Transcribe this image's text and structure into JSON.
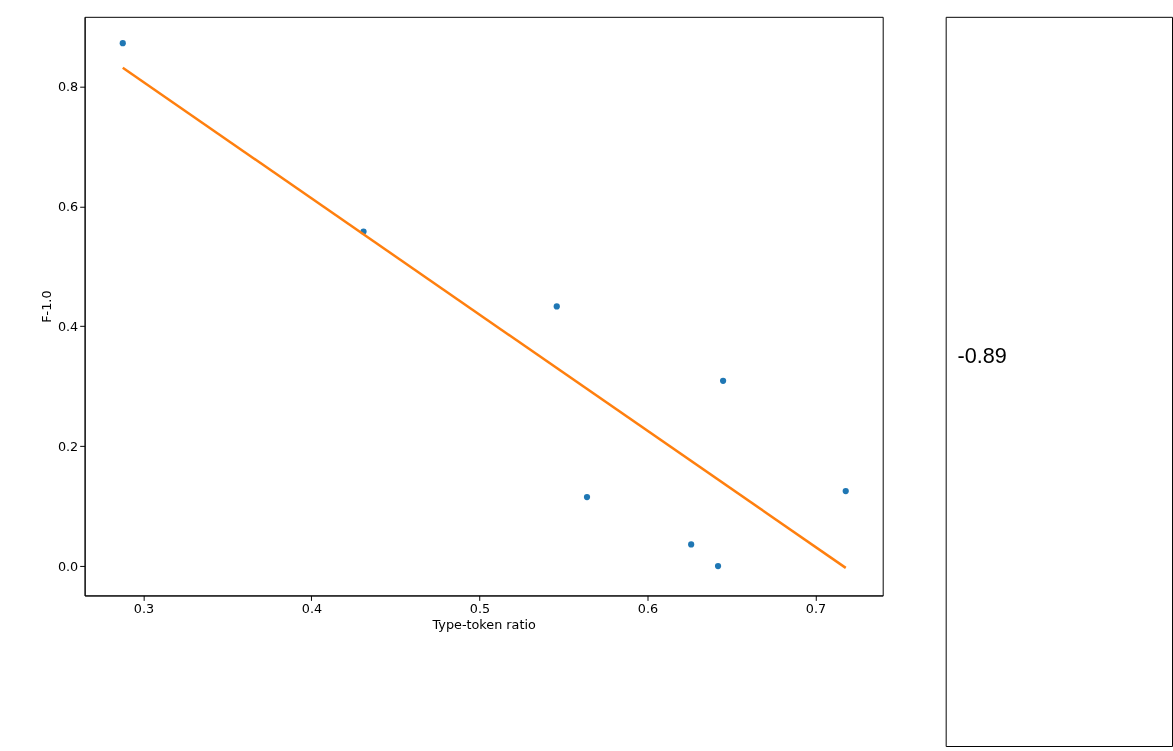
{
  "chart_data": [
    {
      "type": "scatter",
      "xlabel": "Type-token ratio",
      "ylabel": "F-1.0",
      "series": [
        {
          "type": "scatter",
          "color": "#1f77b4",
          "x": [
            0.2877,
            0.431,
            0.546,
            0.564,
            0.645,
            0.626,
            0.642,
            0.718
          ],
          "values": [
            0.872,
            0.558,
            0.433,
            0.115,
            0.309,
            0.036,
            0.0,
            0.125
          ],
          "marker": "circle"
        },
        {
          "type": "line",
          "color": "#ff7f0e",
          "x": [
            0.2877,
            0.718
          ],
          "values": [
            0.831,
            -0.003
          ],
          "line_style": "solid"
        }
      ],
      "xlim": [
        0.265,
        0.74
      ],
      "ylim": [
        -0.049,
        0.916
      ],
      "xticks": [
        0.3,
        0.4,
        0.5,
        0.6,
        0.7
      ],
      "yticks": [
        {
          "value": 0,
          "label": "0.0"
        },
        0.2,
        0.4,
        0.6,
        0.8
      ],
      "grid": false
    },
    {
      "type": "other",
      "annotations": [
        "-0.89"
      ]
    }
  ]
}
